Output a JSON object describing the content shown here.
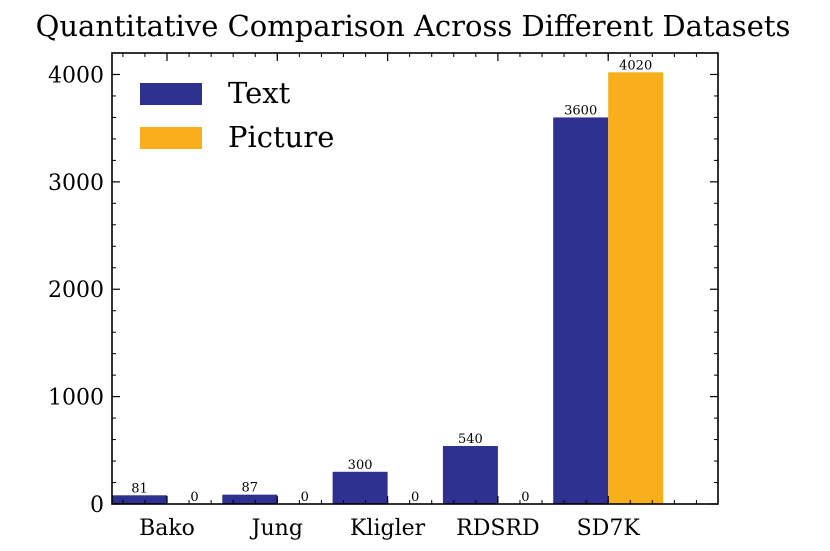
{
  "chart_data": {
    "type": "bar",
    "title": "Quantitative Comparison Across Different Datasets",
    "xlabel": "",
    "ylabel": "",
    "categories": [
      "Bako",
      "Jung",
      "Kligler",
      "RDSRD",
      "SD7K"
    ],
    "series": [
      {
        "name": "Text",
        "values": [
          81,
          87,
          300,
          540,
          3600
        ],
        "color": "#2e318f"
      },
      {
        "name": "Picture",
        "values": [
          0,
          0,
          0,
          0,
          4020
        ],
        "color": "#f9ae1b"
      }
    ],
    "ylim": [
      0,
      4200
    ],
    "yticks": [
      0,
      1000,
      2000,
      3000,
      4000
    ],
    "yticks_labels": [
      "0",
      "1000",
      "2000",
      "3000",
      "4000"
    ],
    "y_minor_step": 200,
    "grid": false,
    "legend_position": "top-left",
    "data_labels": true
  }
}
